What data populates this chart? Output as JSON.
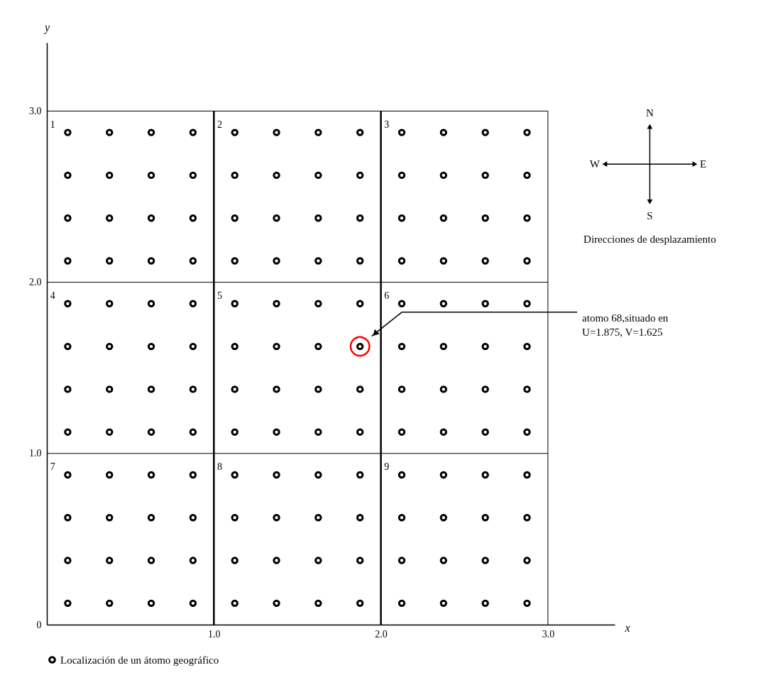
{
  "chart_data": {
    "type": "scatter",
    "xlabel": "x",
    "ylabel": "y",
    "xlim": [
      0,
      3.4
    ],
    "ylim": [
      0,
      3.4
    ],
    "xticks": [
      {
        "value": 0,
        "label": null
      },
      {
        "value": 1,
        "label": "1.0"
      },
      {
        "value": 2,
        "label": "2.0"
      },
      {
        "value": 3,
        "label": "3.0"
      }
    ],
    "yticks": [
      0,
      {
        "value": 1,
        "label": "1.0"
      },
      {
        "value": 2,
        "label": "2.0"
      },
      {
        "value": 3,
        "label": "3.0"
      }
    ],
    "grid": true,
    "marker": "circle",
    "legend": "bottom",
    "series": [
      {
        "name": "Localización de un átomo geográfico",
        "color": "#000000",
        "x": [
          0.125,
          0.375,
          0.625,
          0.875,
          1.125,
          1.375,
          1.625,
          1.875,
          2.125,
          2.375,
          2.625,
          2.875,
          0.125,
          0.375,
          0.625,
          0.875,
          1.125,
          1.375,
          1.625,
          1.875,
          2.125,
          2.375,
          2.625,
          2.875,
          0.125,
          0.375,
          0.625,
          0.875,
          1.125,
          1.375,
          1.625,
          1.875,
          2.125,
          2.375,
          2.625,
          2.875,
          0.125,
          0.375,
          0.625,
          0.875,
          1.125,
          1.375,
          1.625,
          1.875,
          2.125,
          2.375,
          2.625,
          2.875,
          0.125,
          0.375,
          0.625,
          0.875,
          1.125,
          1.375,
          1.625,
          1.875,
          2.125,
          2.375,
          2.625,
          2.875,
          0.125,
          0.375,
          0.625,
          0.875,
          1.125,
          1.375,
          1.625,
          1.875,
          2.125,
          2.375,
          2.625,
          2.875,
          0.125,
          0.375,
          0.625,
          0.875,
          1.125,
          1.375,
          1.625,
          1.875,
          2.125,
          2.375,
          2.625,
          2.875,
          0.125,
          0.375,
          0.625,
          0.875,
          1.125,
          1.375,
          1.625,
          1.875,
          2.125,
          2.375,
          2.625,
          2.875,
          0.125,
          0.375,
          0.625,
          0.875,
          1.125,
          1.375,
          1.625,
          1.875,
          2.125,
          2.375,
          2.625,
          2.875,
          0.125,
          0.375,
          0.625,
          0.875,
          1.125,
          1.375,
          1.625,
          1.875,
          2.125,
          2.375,
          2.625,
          2.875,
          0.125,
          0.375,
          0.625,
          0.875,
          1.125,
          1.375,
          1.625,
          1.875,
          2.125,
          2.375,
          2.625,
          2.875,
          0.125,
          0.375,
          0.625,
          0.875,
          1.125,
          1.375,
          1.625,
          1.875,
          2.125,
          2.375,
          2.625,
          2.875
        ],
        "values": [
          2.875,
          2.875,
          2.875,
          2.875,
          2.875,
          2.875,
          2.875,
          2.875,
          2.875,
          2.875,
          2.875,
          2.875,
          2.625,
          2.625,
          2.625,
          2.625,
          2.625,
          2.625,
          2.625,
          2.625,
          2.625,
          2.625,
          2.625,
          2.625,
          2.375,
          2.375,
          2.375,
          2.375,
          2.375,
          2.375,
          2.375,
          2.375,
          2.375,
          2.375,
          2.375,
          2.375,
          2.125,
          2.125,
          2.125,
          2.125,
          2.125,
          2.125,
          2.125,
          2.125,
          2.125,
          2.125,
          2.125,
          2.125,
          1.875,
          1.875,
          1.875,
          1.875,
          1.875,
          1.875,
          1.875,
          1.875,
          1.875,
          1.875,
          1.875,
          1.875,
          1.625,
          1.625,
          1.625,
          1.625,
          1.625,
          1.625,
          1.625,
          1.625,
          1.625,
          1.625,
          1.625,
          1.625,
          1.375,
          1.375,
          1.375,
          1.375,
          1.375,
          1.375,
          1.375,
          1.375,
          1.375,
          1.375,
          1.375,
          1.375,
          1.125,
          1.125,
          1.125,
          1.125,
          1.125,
          1.125,
          1.125,
          1.125,
          1.125,
          1.125,
          1.125,
          1.125,
          0.875,
          0.875,
          0.875,
          0.875,
          0.875,
          0.875,
          0.875,
          0.875,
          0.875,
          0.875,
          0.875,
          0.875,
          0.625,
          0.625,
          0.625,
          0.625,
          0.625,
          0.625,
          0.625,
          0.625,
          0.625,
          0.625,
          0.625,
          0.625,
          0.375,
          0.375,
          0.375,
          0.375,
          0.375,
          0.375,
          0.375,
          0.375,
          0.375,
          0.375,
          0.375,
          0.375,
          0.125,
          0.125,
          0.125,
          0.125,
          0.125,
          0.125,
          0.125,
          0.125,
          0.125,
          0.125,
          0.125,
          0.125
        ]
      },
      {
        "color": "#ff0000",
        "x": [
          1.875
        ],
        "values": [
          1.625
        ]
      }
    ],
    "annotations": [
      "1",
      "2",
      "3",
      "4",
      "5",
      "6",
      "7",
      "8",
      "9",
      "atomo 68,situado en\nU=1.875, V=1.625",
      "N",
      "W",
      "E",
      "S",
      "Direcciones de desplazamiento"
    ]
  }
}
